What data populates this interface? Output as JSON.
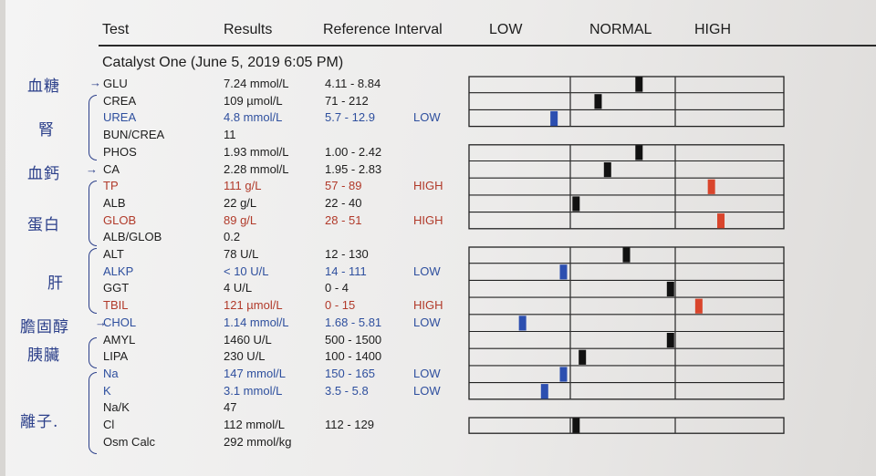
{
  "headers": {
    "test": "Test",
    "results": "Results",
    "reference": "Reference Interval",
    "low": "LOW",
    "normal": "NORMAL",
    "high": "HIGH"
  },
  "subtitle": "Catalyst One (June 5, 2019 6:05 PM)",
  "colors": {
    "low": "#2c4fb0",
    "high": "#d9452c",
    "normal": "#111111"
  },
  "rows": [
    {
      "test": "GLU",
      "result": "7.24 mmol/L",
      "ref": "4.11 - 8.84",
      "flag": "",
      "color": "normal",
      "marker": 0.54
    },
    {
      "test": "CREA",
      "result": "109 µmol/L",
      "ref": "71 - 212",
      "flag": "",
      "color": "normal",
      "marker": 0.41
    },
    {
      "test": "UREA",
      "result": "4.8 mmol/L",
      "ref": "5.7 - 12.9",
      "flag": "LOW",
      "color": "low",
      "marker": 0.27
    },
    {
      "test": "BUN/CREA",
      "result": "11",
      "ref": "",
      "flag": "",
      "color": "normal",
      "marker": null
    },
    {
      "test": "PHOS",
      "result": "1.93 mmol/L",
      "ref": "1.00 - 2.42",
      "flag": "",
      "color": "normal",
      "marker": 0.54
    },
    {
      "test": "CA",
      "result": "2.28 mmol/L",
      "ref": "1.95 - 2.83",
      "flag": "",
      "color": "normal",
      "marker": 0.44
    },
    {
      "test": "TP",
      "result": "111 g/L",
      "ref": "57 - 89",
      "flag": "HIGH",
      "color": "high",
      "marker": 0.77
    },
    {
      "test": "ALB",
      "result": "22 g/L",
      "ref": "22 - 40",
      "flag": "",
      "color": "normal",
      "marker": 0.34
    },
    {
      "test": "GLOB",
      "result": "89 g/L",
      "ref": "28 - 51",
      "flag": "HIGH",
      "color": "high",
      "marker": 0.8
    },
    {
      "test": "ALB/GLOB",
      "result": "0.2",
      "ref": "",
      "flag": "",
      "color": "normal",
      "marker": null
    },
    {
      "test": "ALT",
      "result": "78 U/L",
      "ref": "12 - 130",
      "flag": "",
      "color": "normal",
      "marker": 0.5
    },
    {
      "test": "ALKP",
      "result": "< 10 U/L",
      "ref": "14 - 111",
      "flag": "LOW",
      "color": "low",
      "marker": 0.3
    },
    {
      "test": "GGT",
      "result": "4 U/L",
      "ref": "0 - 4",
      "flag": "",
      "color": "normal",
      "marker": 0.64
    },
    {
      "test": "TBIL",
      "result": "121 µmol/L",
      "ref": "0 - 15",
      "flag": "HIGH",
      "color": "high",
      "marker": 0.73
    },
    {
      "test": "CHOL",
      "result": "1.14 mmol/L",
      "ref": "1.68 - 5.81",
      "flag": "LOW",
      "color": "low",
      "marker": 0.17
    },
    {
      "test": "AMYL",
      "result": "1460 U/L",
      "ref": "500 - 1500",
      "flag": "",
      "color": "normal",
      "marker": 0.64
    },
    {
      "test": "LIPA",
      "result": "230 U/L",
      "ref": "100 - 1400",
      "flag": "",
      "color": "normal",
      "marker": 0.36
    },
    {
      "test": "Na",
      "result": "147 mmol/L",
      "ref": "150 - 165",
      "flag": "LOW",
      "color": "low",
      "marker": 0.3
    },
    {
      "test": "K",
      "result": "3.1 mmol/L",
      "ref": "3.5 - 5.8",
      "flag": "LOW",
      "color": "low",
      "marker": 0.24
    },
    {
      "test": "Na/K",
      "result": "47",
      "ref": "",
      "flag": "",
      "color": "normal",
      "marker": null
    },
    {
      "test": "Cl",
      "result": "112 mmol/L",
      "ref": "112 - 129",
      "flag": "",
      "color": "normal",
      "marker": 0.34
    },
    {
      "test": "Osm Calc",
      "result": "292 mmol/kg",
      "ref": "",
      "flag": "",
      "color": "normal",
      "marker": null
    }
  ],
  "annotations": {
    "glucose": "血糖",
    "kidney": "腎",
    "calcium": "血鈣",
    "protein": "蛋白",
    "liver": "肝",
    "cholesterol": "膽固醇",
    "pancreas": "胰臟",
    "ions": "離子."
  }
}
